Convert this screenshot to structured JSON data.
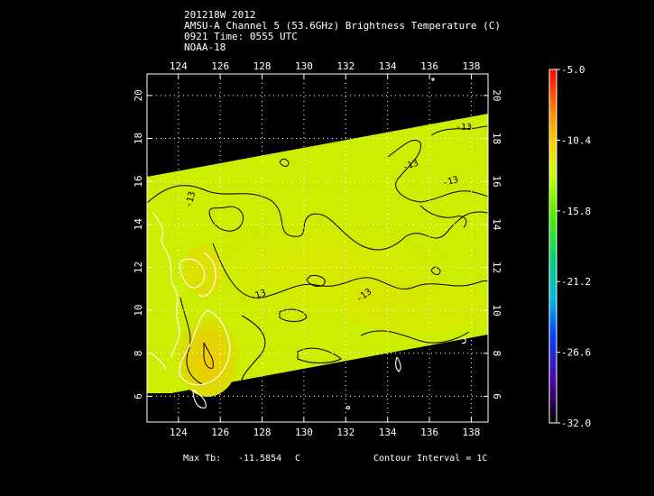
{
  "header": {
    "line1": "201218W 2012",
    "line2": "AMSU-A Channel 5 (53.6GHz) Brightness Temperature (C)",
    "line3": "0921 Time: 0555 UTC",
    "line4": "NOAA-18"
  },
  "map": {
    "lon_ticks": [
      "124",
      "126",
      "128",
      "130",
      "132",
      "134",
      "136",
      "138"
    ],
    "lat_ticks": [
      "6",
      "8",
      "10",
      "12",
      "14",
      "16",
      "18",
      "20"
    ],
    "lon_range": [
      122.5,
      138.8
    ],
    "lat_range": [
      4.8,
      21.0
    ],
    "contour_labels": [
      "-13",
      "-13",
      "-13",
      "-13",
      "-13",
      "-13"
    ],
    "grid": "dotted"
  },
  "colorbar": {
    "labels": [
      "-5.0",
      "-10.4",
      "-15.8",
      "-21.2",
      "-26.6",
      "-32.0"
    ],
    "range": [
      -32.0,
      -5.0
    ],
    "colors": [
      "#ff0000",
      "#ffcc00",
      "#ccff00",
      "#00dd55",
      "#00cccc",
      "#0033ff",
      "#5500aa",
      "#000000"
    ]
  },
  "footer": {
    "max_tb_label": "Max Tb:",
    "max_tb_value": "-11.5854",
    "max_tb_unit": "C",
    "contour_interval": "Contour Interval = 1C"
  }
}
